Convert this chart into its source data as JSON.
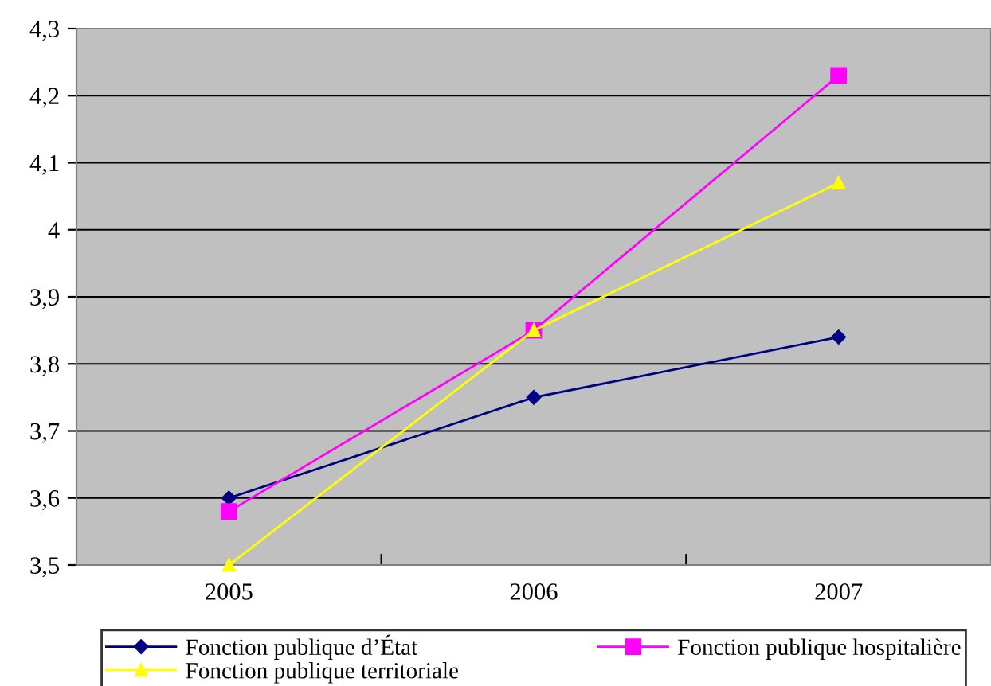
{
  "chart_data": {
    "type": "line",
    "categories": [
      "2005",
      "2006",
      "2007"
    ],
    "series": [
      {
        "name": "Fonction publique d’État",
        "color": "#000080",
        "values": [
          3.6,
          3.75,
          3.84
        ],
        "marker": "diamond"
      },
      {
        "name": "Fonction publique hospitalière",
        "color": "#ff00ff",
        "values": [
          3.58,
          3.85,
          4.23
        ],
        "marker": "square"
      },
      {
        "name": "Fonction publique territoriale",
        "color": "#ffff00",
        "values": [
          3.5,
          3.85,
          4.07
        ],
        "marker": "triangle"
      }
    ],
    "ylim": [
      3.5,
      4.3
    ],
    "yticks": [
      {
        "value": 3.5,
        "label": "3,5"
      },
      {
        "value": 3.6,
        "label": "3,6"
      },
      {
        "value": 3.7,
        "label": "3,7"
      },
      {
        "value": 3.8,
        "label": "3,8"
      },
      {
        "value": 3.9,
        "label": "3,9"
      },
      4,
      {
        "value": 4.1,
        "label": "4,1"
      },
      {
        "value": 4.2,
        "label": "4,2"
      },
      {
        "value": 4.3,
        "label": "4,3"
      }
    ],
    "grid": "y",
    "legend": "bottom"
  }
}
